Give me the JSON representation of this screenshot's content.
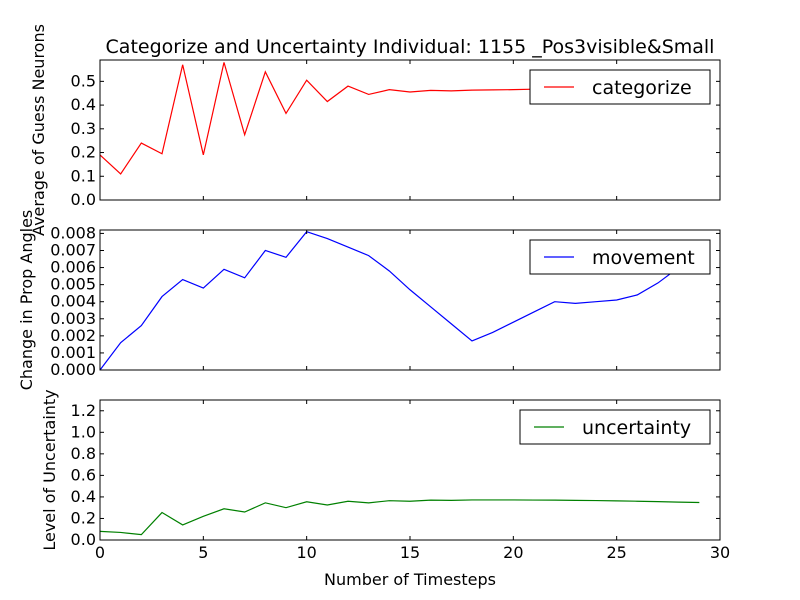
{
  "figure": {
    "title": "Categorize and Uncertainty Individual: 1155 _Pos3visible&Small",
    "xlabel": "Number of Timesteps"
  },
  "chart_data": [
    {
      "type": "line",
      "ylabel": "Average of Guess Neurons",
      "xlim": [
        0,
        30
      ],
      "ylim": [
        0,
        0.59
      ],
      "xticks": [
        "0",
        "5",
        "10",
        "15",
        "20",
        "25",
        "30"
      ],
      "xtick_values": [
        0,
        5,
        10,
        15,
        20,
        25,
        30
      ],
      "yticks": [
        "0.0",
        "0.1",
        "0.2",
        "0.3",
        "0.4",
        "0.5"
      ],
      "ytick_values": [
        0,
        0.1,
        0.2,
        0.3,
        0.4,
        0.5
      ],
      "show_xtick_labels": false,
      "legend": "top-right",
      "series": [
        {
          "name": "categorize",
          "color": "#ff0000",
          "x": [
            0,
            1,
            2,
            3,
            4,
            5,
            6,
            7,
            8,
            9,
            10,
            11,
            12,
            13,
            14,
            15,
            16,
            17,
            18,
            19,
            20,
            21,
            22,
            23,
            24,
            25,
            26,
            27,
            28,
            29
          ],
          "y": [
            0.19,
            0.11,
            0.24,
            0.195,
            0.57,
            0.19,
            0.58,
            0.275,
            0.54,
            0.365,
            0.505,
            0.415,
            0.48,
            0.445,
            0.465,
            0.455,
            0.462,
            0.46,
            0.463,
            0.464,
            0.465,
            0.467,
            0.468,
            0.469,
            0.47,
            0.47,
            0.471,
            0.471,
            0.472,
            0.472
          ]
        }
      ]
    },
    {
      "type": "line",
      "ylabel": "Change in Prop Angles",
      "xlim": [
        0,
        30
      ],
      "ylim": [
        0,
        0.0082
      ],
      "xticks": [
        "0",
        "5",
        "10",
        "15",
        "20",
        "25",
        "30"
      ],
      "xtick_values": [
        0,
        5,
        10,
        15,
        20,
        25,
        30
      ],
      "yticks": [
        "0.000",
        "0.001",
        "0.002",
        "0.003",
        "0.004",
        "0.005",
        "0.006",
        "0.007",
        "0.008"
      ],
      "ytick_values": [
        0,
        0.001,
        0.002,
        0.003,
        0.004,
        0.005,
        0.006,
        0.007,
        0.008
      ],
      "show_xtick_labels": false,
      "legend": "top-right",
      "series": [
        {
          "name": "movement",
          "color": "#0000ff",
          "x": [
            0,
            1,
            2,
            3,
            4,
            5,
            6,
            7,
            8,
            9,
            10,
            11,
            12,
            13,
            14,
            15,
            16,
            17,
            18,
            19,
            20,
            21,
            22,
            23,
            24,
            25,
            26,
            27,
            28,
            29
          ],
          "y": [
            0.0,
            0.0016,
            0.0026,
            0.0043,
            0.0053,
            0.0048,
            0.0059,
            0.0054,
            0.007,
            0.0066,
            0.0081,
            0.0077,
            0.0072,
            0.0067,
            0.0058,
            0.0047,
            0.0037,
            0.0027,
            0.0017,
            0.0022,
            0.0028,
            0.0034,
            0.004,
            0.0039,
            0.004,
            0.0041,
            0.0044,
            0.0051,
            0.006,
            0.0065
          ]
        }
      ]
    },
    {
      "type": "line",
      "ylabel": "Level of Uncertainty",
      "xlim": [
        0,
        30
      ],
      "ylim": [
        0,
        1.3
      ],
      "xticks": [
        "0",
        "5",
        "10",
        "15",
        "20",
        "25",
        "30"
      ],
      "xtick_values": [
        0,
        5,
        10,
        15,
        20,
        25,
        30
      ],
      "yticks": [
        "0.0",
        "0.2",
        "0.4",
        "0.6",
        "0.8",
        "1.0",
        "1.2"
      ],
      "ytick_values": [
        0,
        0.2,
        0.4,
        0.6,
        0.8,
        1.0,
        1.2
      ],
      "show_xtick_labels": true,
      "legend": "top-right",
      "series": [
        {
          "name": "uncertainty",
          "color": "#008000",
          "x": [
            0,
            1,
            2,
            3,
            4,
            5,
            6,
            7,
            8,
            9,
            10,
            11,
            12,
            13,
            14,
            15,
            16,
            17,
            18,
            19,
            20,
            21,
            22,
            23,
            24,
            25,
            26,
            27,
            28,
            29
          ],
          "y": [
            0.08,
            0.07,
            0.05,
            0.255,
            0.14,
            0.22,
            0.29,
            0.26,
            0.345,
            0.3,
            0.355,
            0.325,
            0.36,
            0.345,
            0.365,
            0.36,
            0.37,
            0.368,
            0.372,
            0.372,
            0.372,
            0.371,
            0.37,
            0.368,
            0.366,
            0.363,
            0.36,
            0.356,
            0.352,
            0.348
          ]
        }
      ]
    }
  ]
}
